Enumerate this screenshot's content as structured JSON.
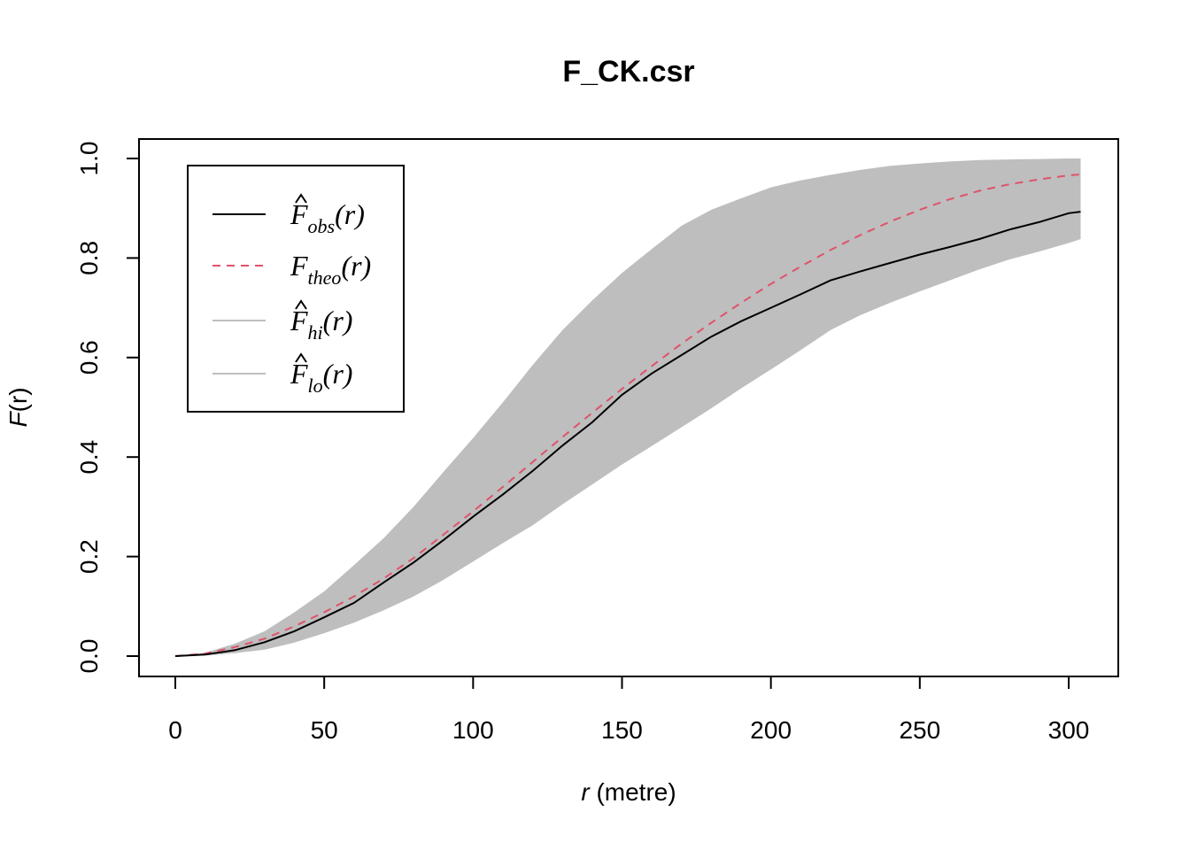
{
  "chart_data": {
    "type": "area",
    "title": "F_CK.csr",
    "xlabel_symbol": "r",
    "xlabel_unit": "(metre)",
    "ylabel_symbol": "F",
    "ylabel_arg": "(r)",
    "xlim": [
      0,
      305
    ],
    "ylim": [
      0,
      1
    ],
    "x_ticks": [
      0,
      50,
      100,
      150,
      200,
      250,
      300
    ],
    "y_ticks": [
      0.0,
      0.2,
      0.4,
      0.6,
      0.8,
      1.0
    ],
    "x_tick_labels": [
      "0",
      "50",
      "100",
      "150",
      "200",
      "250",
      "300"
    ],
    "y_tick_labels": [
      "0.0",
      "0.2",
      "0.4",
      "0.6",
      "0.8",
      "1.0"
    ],
    "grid": false,
    "legend_position": "top-left",
    "x": [
      0,
      10,
      20,
      30,
      40,
      50,
      60,
      70,
      80,
      90,
      100,
      110,
      120,
      130,
      140,
      150,
      160,
      170,
      180,
      190,
      200,
      210,
      220,
      230,
      240,
      250,
      260,
      270,
      280,
      290,
      300,
      304
    ],
    "series": [
      {
        "key": "obs",
        "name": "F",
        "sub": "obs",
        "hat": true,
        "color": "#000000",
        "style": "solid",
        "values": [
          0,
          0.003,
          0.012,
          0.028,
          0.05,
          0.078,
          0.107,
          0.148,
          0.188,
          0.233,
          0.28,
          0.325,
          0.372,
          0.423,
          0.47,
          0.525,
          0.568,
          0.605,
          0.642,
          0.673,
          0.7,
          0.727,
          0.755,
          0.773,
          0.79,
          0.807,
          0.822,
          0.838,
          0.857,
          0.872,
          0.89,
          0.893
        ]
      },
      {
        "key": "theo",
        "name": "F",
        "sub": "theo",
        "hat": false,
        "color": "#DF536B",
        "style": "dashed",
        "values": [
          0,
          0.005,
          0.018,
          0.035,
          0.06,
          0.088,
          0.12,
          0.156,
          0.197,
          0.244,
          0.291,
          0.34,
          0.39,
          0.44,
          0.489,
          0.537,
          0.583,
          0.628,
          0.67,
          0.71,
          0.748,
          0.783,
          0.816,
          0.846,
          0.873,
          0.897,
          0.918,
          0.935,
          0.948,
          0.958,
          0.966,
          0.968
        ]
      },
      {
        "key": "hi",
        "name": "F",
        "sub": "hi",
        "hat": true,
        "color": "#BEBEBE",
        "style": "band-upper",
        "values": [
          0,
          0.007,
          0.025,
          0.05,
          0.088,
          0.13,
          0.183,
          0.237,
          0.3,
          0.37,
          0.438,
          0.51,
          0.585,
          0.655,
          0.715,
          0.77,
          0.818,
          0.865,
          0.897,
          0.92,
          0.942,
          0.956,
          0.967,
          0.977,
          0.985,
          0.99,
          0.994,
          0.997,
          0.998,
          0.999,
          1.0,
          1.0
        ]
      },
      {
        "key": "lo",
        "name": "F",
        "sub": "lo",
        "hat": true,
        "color": "#BEBEBE",
        "style": "band-lower",
        "values": [
          0,
          0.001,
          0.006,
          0.013,
          0.027,
          0.046,
          0.067,
          0.092,
          0.12,
          0.153,
          0.19,
          0.227,
          0.263,
          0.305,
          0.345,
          0.385,
          0.422,
          0.46,
          0.498,
          0.538,
          0.576,
          0.615,
          0.655,
          0.685,
          0.71,
          0.733,
          0.755,
          0.777,
          0.797,
          0.813,
          0.83,
          0.838
        ]
      }
    ]
  }
}
